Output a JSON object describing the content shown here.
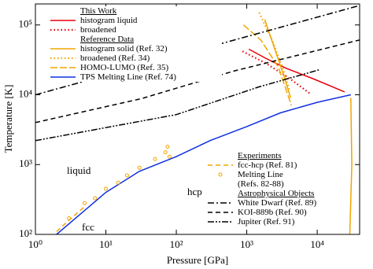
{
  "chart_data": {
    "type": "line",
    "x_label": "Pressure [GPa]",
    "y_label": "Temperature [K]",
    "log_x": true,
    "log_y": true,
    "xlim": [
      1,
      40000
    ],
    "ylim": [
      100,
      200000
    ],
    "xticks": [
      {
        "value": 1,
        "label": "10⁰"
      },
      {
        "value": 10,
        "label": "10¹"
      },
      {
        "value": 100,
        "label": "10²"
      },
      {
        "value": 1000,
        "label": "10³"
      },
      {
        "value": 10000,
        "label": "10⁴"
      }
    ],
    "yticks": [
      {
        "value": 100,
        "label": "10²"
      },
      {
        "value": 1000,
        "label": "10³"
      },
      {
        "value": 10000,
        "label": "10⁴"
      },
      {
        "value": 100000,
        "label": "10⁵"
      }
    ],
    "annotations": [
      "liquid",
      "hcp",
      "fcc"
    ],
    "groups": [
      {
        "title": "This Work",
        "series": [
          {
            "name": "histogram liquid",
            "color": "#e8000b",
            "style": "solid",
            "x": [
              1070,
              1900,
              3600,
              8700,
              24500
            ],
            "values": [
              45000,
              33000,
              24000,
              17000,
              11000
            ]
          },
          {
            "name": "broadened",
            "color": "#e8000b",
            "style": "dotted",
            "x": [
              870,
              1900,
              4100,
              7800
            ],
            "values": [
              42000,
              28000,
              17000,
              10500
            ]
          }
        ]
      },
      {
        "title": "Reference Data",
        "series": [
          {
            "name": "histogram solid (Ref. 32)",
            "color": "#f0a500",
            "style": "solid",
            "x": [
              1800,
              2600,
              3400,
              4200,
              null,
              30000,
              31000,
              29000
            ],
            "values": [
              120000,
              40000,
              18000,
              9000,
              null,
              9000,
              1000,
              100
            ]
          },
          {
            "name": "broadened (Ref. 34)",
            "color": "#f0a500",
            "style": "dotted",
            "x": [
              1500,
              2300,
              3200,
              4000
            ],
            "values": [
              150000,
              60000,
              25000,
              12000
            ]
          },
          {
            "name": "HOMO-LUMO (Ref. 35)",
            "color": "#f0a500",
            "style": "longdash",
            "x": [
              900,
              1600,
              2800,
              3600,
              4300
            ],
            "values": [
              100000,
              60000,
              25000,
              12000,
              7000
            ]
          },
          {
            "name": "TPS Melting Line (Ref. 74)",
            "color": "#1030e0",
            "style": "solid",
            "x": [
              2,
              5,
              10,
              30,
              100,
              300,
              1000,
              3000,
              10000,
              30000
            ],
            "values": [
              100,
              220,
              400,
              800,
              1300,
              2200,
              3500,
              5500,
              7800,
              10000
            ]
          }
        ]
      },
      {
        "title": "Experiments",
        "series": [
          {
            "name": "fcc-hcp (Ref. 81)",
            "color": "#f0a500",
            "style": "dashed",
            "x": [
              2,
              3,
              5
            ],
            "values": [
              110,
              160,
              250
            ]
          },
          {
            "name": "Melting Line (Refs. 82-88)",
            "color": "#f0a500",
            "style": "markers",
            "x": [
              3,
              5,
              7,
              10,
              15,
              20,
              30,
              50,
              70,
              75,
              80
            ],
            "values": [
              170,
              280,
              330,
              450,
              550,
              700,
              900,
              1200,
              1500,
              1800,
              1300
            ]
          }
        ]
      },
      {
        "title": "Astrophysical Objects",
        "series": [
          {
            "name": "White Dwarf (Ref. 89)",
            "color": "#000000",
            "style": "dashdot",
            "x": [
              1,
              40000
            ],
            "values": [
              10000,
              190000
            ]
          },
          {
            "name": "KOI-889b (Ref. 90)",
            "color": "#000000",
            "style": "dashed",
            "x": [
              1,
              32,
              670,
              40000
            ],
            "values": [
              4000,
              8800,
              22000,
              61000
            ]
          },
          {
            "name": "Jupiter (Ref. 91)",
            "color": "#000000",
            "style": "dashdotdot",
            "x": [
              1,
              100,
              1500,
              11000
            ],
            "values": [
              2200,
              5200,
              13000,
              23000
            ]
          }
        ]
      }
    ]
  }
}
